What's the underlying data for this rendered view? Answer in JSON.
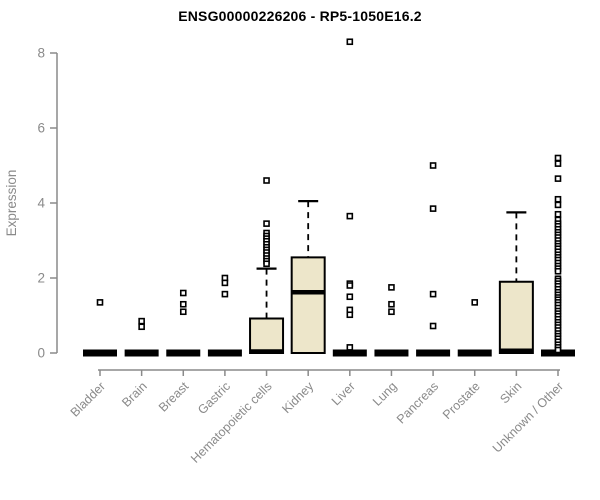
{
  "chart_data": {
    "type": "boxplot",
    "title": "ENSG00000226206 - RP5-1050E16.2",
    "ylabel": "Expression",
    "xlabel": "",
    "yticks": [
      0,
      2,
      4,
      6,
      8
    ],
    "ylim": [
      0,
      8.5
    ],
    "grid": false,
    "legend": null,
    "colors": {
      "box_fill": "#EDE6CA",
      "box_stroke": "#000000",
      "median": "#000000",
      "outlier_stroke": "#000000",
      "axis": "#8A8A8A",
      "tick_text": "#8A8A8A",
      "title_text": "#000000"
    },
    "categories": [
      "Bladder",
      "Brain",
      "Breast",
      "Gastric",
      "Hematopoietic cells",
      "Kidney",
      "Liver",
      "Lung",
      "Pancreas",
      "Prostate",
      "Skin",
      "Unknown / Other"
    ],
    "boxes": [
      {
        "category": "Bladder",
        "q1": 0,
        "median": 0,
        "q3": 0,
        "whisker_low": 0,
        "whisker_high": 0,
        "outliers": [
          1.35
        ]
      },
      {
        "category": "Brain",
        "q1": 0,
        "median": 0,
        "q3": 0,
        "whisker_low": 0,
        "whisker_high": 0,
        "outliers": [
          0.85,
          0.7
        ]
      },
      {
        "category": "Breast",
        "q1": 0,
        "median": 0,
        "q3": 0,
        "whisker_low": 0,
        "whisker_high": 0,
        "outliers": [
          1.6,
          1.3,
          1.1
        ]
      },
      {
        "category": "Gastric",
        "q1": 0,
        "median": 0,
        "q3": 0,
        "whisker_low": 0,
        "whisker_high": 0,
        "outliers": [
          2.0,
          1.87,
          1.57
        ]
      },
      {
        "category": "Hematopoietic cells",
        "q1": 0,
        "median": 0.04,
        "q3": 0.92,
        "whisker_low": 0,
        "whisker_high": 2.25,
        "outliers": [
          4.6,
          3.45,
          3.2,
          3.12,
          3.05,
          2.98,
          2.9,
          2.82,
          2.75,
          2.68,
          2.6,
          2.52,
          2.45,
          2.38
        ]
      },
      {
        "category": "Kidney",
        "q1": 0,
        "median": 1.62,
        "q3": 2.55,
        "whisker_low": 0,
        "whisker_high": 4.05,
        "outliers": []
      },
      {
        "category": "Liver",
        "q1": 0,
        "median": 0,
        "q3": 0,
        "whisker_low": 0,
        "whisker_high": 0,
        "outliers": [
          8.3,
          3.65,
          1.85,
          1.8,
          1.5,
          1.15,
          1.02,
          0.15
        ]
      },
      {
        "category": "Lung",
        "q1": 0,
        "median": 0,
        "q3": 0,
        "whisker_low": 0,
        "whisker_high": 0,
        "outliers": [
          1.75,
          1.3,
          1.1
        ]
      },
      {
        "category": "Pancreas",
        "q1": 0,
        "median": 0,
        "q3": 0,
        "whisker_low": 0,
        "whisker_high": 0,
        "outliers": [
          5.0,
          3.85,
          1.57,
          0.72
        ]
      },
      {
        "category": "Prostate",
        "q1": 0,
        "median": 0,
        "q3": 0,
        "whisker_low": 0,
        "whisker_high": 0,
        "outliers": [
          1.35
        ]
      },
      {
        "category": "Skin",
        "q1": 0,
        "median": 0.06,
        "q3": 1.9,
        "whisker_low": 0,
        "whisker_high": 3.75,
        "outliers": []
      },
      {
        "category": "Unknown / Other",
        "q1": 0,
        "median": 0,
        "q3": 0,
        "whisker_low": 0,
        "whisker_high": 0,
        "outliers": [
          5.2,
          5.05,
          4.65,
          4.1,
          3.95,
          3.7,
          3.55,
          3.45,
          3.38,
          3.3,
          3.22,
          3.15,
          3.08,
          3.0,
          2.92,
          2.85,
          2.78,
          2.7,
          2.62,
          2.55,
          2.48,
          2.4,
          2.32,
          2.25,
          2.18,
          1.98,
          1.92,
          1.85,
          1.78,
          1.7,
          1.62,
          1.55,
          1.48,
          1.42,
          1.35,
          1.28,
          1.2,
          1.12,
          1.05,
          0.98,
          0.9,
          0.82,
          0.75,
          0.68,
          0.6,
          0.52,
          0.45,
          0.38,
          0.3,
          0.22,
          0.15,
          0.08
        ]
      }
    ]
  }
}
